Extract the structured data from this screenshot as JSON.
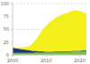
{
  "chart_data": {
    "type": "area",
    "stacked": true,
    "grid": true,
    "x": [
      2000,
      2001,
      2002,
      2003,
      2004,
      2005,
      2006,
      2007,
      2008,
      2009,
      2010,
      2011,
      2012,
      2013,
      2014,
      2015,
      2016,
      2017,
      2018,
      2019,
      2020,
      2021,
      2022
    ],
    "xlim": [
      2000,
      2022
    ],
    "xticks": [
      2000,
      2010,
      2020
    ],
    "ylim": [
      0,
      100
    ],
    "yticks": [
      0,
      25,
      50,
      75,
      100
    ],
    "series": [
      {
        "color": "#7cc242",
        "values": [
          4,
          4,
          4,
          4,
          4,
          4,
          4,
          5,
          5,
          5,
          5,
          5,
          5,
          6,
          6,
          6,
          6,
          6,
          7,
          7,
          7,
          8,
          8
        ]
      },
      {
        "color": "#1f3b70",
        "values": [
          10,
          9,
          8,
          7,
          6,
          5,
          4,
          3,
          2,
          2,
          1,
          1,
          1,
          1,
          1,
          1,
          1,
          1,
          1,
          1,
          1,
          1,
          1
        ]
      },
      {
        "color": "#f2ef1a",
        "values": [
          1,
          1,
          2,
          3,
          5,
          8,
          14,
          22,
          32,
          42,
          50,
          57,
          62,
          66,
          69,
          72,
          74,
          76,
          78,
          79,
          77,
          74,
          71
        ]
      }
    ]
  }
}
